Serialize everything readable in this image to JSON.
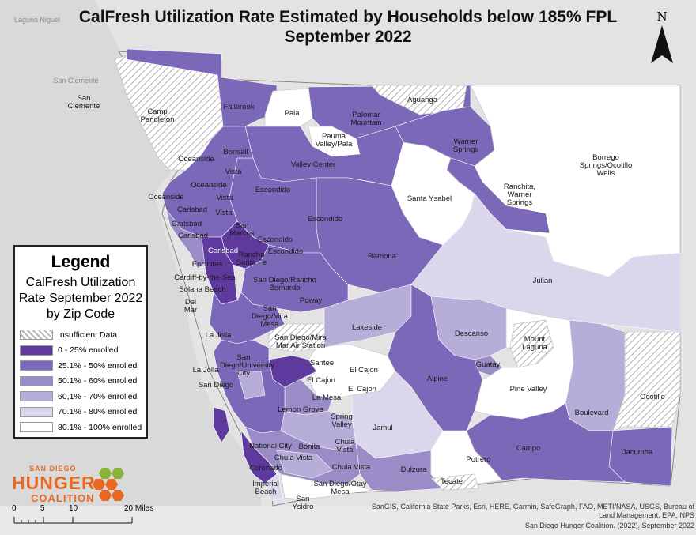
{
  "title": {
    "line1": "CalFresh Utilization Rate Estimated by Households below 185% FPL",
    "line2": "September 2022"
  },
  "legend": {
    "heading": "Legend",
    "subtitle": "CalFresh Utilization Rate September 2022 by Zip Code",
    "items": [
      {
        "label": "Insufficient Data",
        "color": "hatch"
      },
      {
        "label": "0 - 25% enrolled",
        "color": "#5e3a9e"
      },
      {
        "label": "25.1% - 50% enrolled",
        "color": "#7b68b8"
      },
      {
        "label": "50.1% - 60% enrolled",
        "color": "#9a8dc7"
      },
      {
        "label": "60,1% - 70% enrolled",
        "color": "#b6aed8"
      },
      {
        "label": "70.1% - 80% enrolled",
        "color": "#dad6ec"
      },
      {
        "label": "80.1% - 100% enrolled",
        "color": "#ffffff"
      }
    ]
  },
  "north_arrow": {
    "label": "N"
  },
  "scale_bar": {
    "ticks": [
      "0",
      "5",
      "10",
      "20 Miles"
    ]
  },
  "logo": {
    "line1": "SAN DIEGO",
    "line2": "HUNGER",
    "line3": "COALITION"
  },
  "credits": {
    "sources": "SanGIS, California State Parks, Esri, HERE, Garmin, SafeGraph, FAO, METI/NASA, USGS, Bureau of Land Management, EPA, NPS",
    "citation": "San Diego Hunger Coalition. (2022). September 2022"
  },
  "basemap_labels": [
    "Laguna Niguel",
    "San Clemente"
  ],
  "place_labels": [
    "Camp Pendleton",
    "San Clemente",
    "Fallbrook",
    "Pala",
    "Palomar Mountain",
    "Aguanga",
    "Pauma Valley/Pala",
    "Warner Springs",
    "Borrego Springs/Ocotillo Wells",
    "Bonsall",
    "Oceanside",
    "Vista",
    "Valley Center",
    "Oceanside",
    "Vista",
    "Escondido",
    "Ranchita, Warner Springs",
    "Santa Ysabel",
    "Oceanside",
    "Carlsbad",
    "Vista",
    "Escondido",
    "Carlsbad",
    "San Marcos",
    "Carlsbad",
    "Escondido",
    "Carlsbad",
    "Rancho Santa Fe",
    "Escondido",
    "Encinitas",
    "Ramona",
    "Cardiff-by-the-Sea",
    "San Diego/Rancho Bernardo",
    "Julian",
    "Solana Beach",
    "Poway",
    "Del Mar",
    "San Diego/Mira Mesa",
    "Lakeside",
    "Descanso",
    "La Jolla",
    "San Diego/Mira Mar Air Station",
    "Mount Laguna",
    "San Diego/University City",
    "Santee",
    "Guatay",
    "La Jolla",
    "El Cajon",
    "Alpine",
    "San Diego",
    "El Cajon",
    "El Cajon",
    "Pine Valley",
    "La Mesa",
    "Lemon Grove",
    "Spring Valley",
    "Boulevard",
    "Ocotillo",
    "Jamul",
    "National City",
    "Bonita",
    "Chula Vista",
    "Chula Vista",
    "Campo",
    "Jacumba",
    "Coronado",
    "Chula Vista",
    "Potrero",
    "Dulzura",
    "Tecate",
    "Imperial Beach",
    "San Diego/Otay Mesa",
    "San Ysidro"
  ]
}
